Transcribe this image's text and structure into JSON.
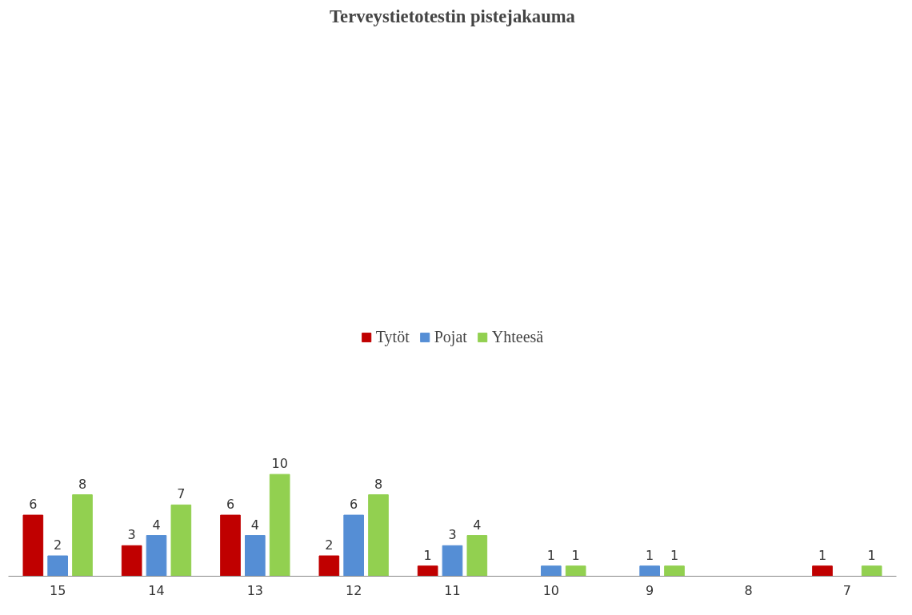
{
  "chart_data": {
    "type": "bar",
    "title": "Terveystietotestin pistejakauma",
    "categories": [
      "15",
      "14",
      "13",
      "12",
      "11",
      "10",
      "9",
      "8",
      "7"
    ],
    "series": [
      {
        "name": "Tytöt",
        "color": "#c00000",
        "values": [
          6,
          3,
          6,
          2,
          1,
          null,
          null,
          null,
          1
        ]
      },
      {
        "name": "Pojat",
        "color": "#558ed5",
        "values": [
          2,
          4,
          4,
          6,
          3,
          1,
          1,
          null,
          null
        ]
      },
      {
        "name": "Yhteesä",
        "color": "#92d050",
        "values": [
          8,
          7,
          10,
          8,
          4,
          1,
          1,
          null,
          1
        ]
      }
    ],
    "data_labels": true,
    "grid": false,
    "legend": "top"
  }
}
